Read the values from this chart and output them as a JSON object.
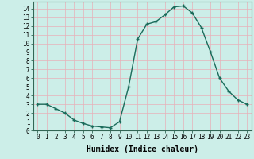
{
  "title": "",
  "xlabel": "Humidex (Indice chaleur)",
  "ylabel": "",
  "x": [
    0,
    1,
    2,
    3,
    4,
    5,
    6,
    7,
    8,
    9,
    10,
    11,
    12,
    13,
    14,
    15,
    16,
    17,
    18,
    19,
    20,
    21,
    22,
    23
  ],
  "y": [
    3.0,
    3.0,
    2.5,
    2.0,
    1.2,
    0.8,
    0.5,
    0.4,
    0.3,
    1.0,
    5.0,
    10.5,
    12.2,
    12.5,
    13.3,
    14.2,
    14.3,
    13.5,
    11.8,
    9.0,
    6.0,
    4.5,
    3.5,
    3.0
  ],
  "line_color": "#1a6b5a",
  "bg_color": "#cceee8",
  "grid_color": "#e8b0b8",
  "xlim": [
    -0.5,
    23.5
  ],
  "ylim": [
    0,
    14.8
  ],
  "yticks": [
    0,
    1,
    2,
    3,
    4,
    5,
    6,
    7,
    8,
    9,
    10,
    11,
    12,
    13,
    14
  ],
  "xticks": [
    0,
    1,
    2,
    3,
    4,
    5,
    6,
    7,
    8,
    9,
    10,
    11,
    12,
    13,
    14,
    15,
    16,
    17,
    18,
    19,
    20,
    21,
    22,
    23
  ],
  "marker": "+",
  "markersize": 3,
  "linewidth": 1.0,
  "xlabel_fontsize": 7,
  "tick_fontsize": 5.5
}
